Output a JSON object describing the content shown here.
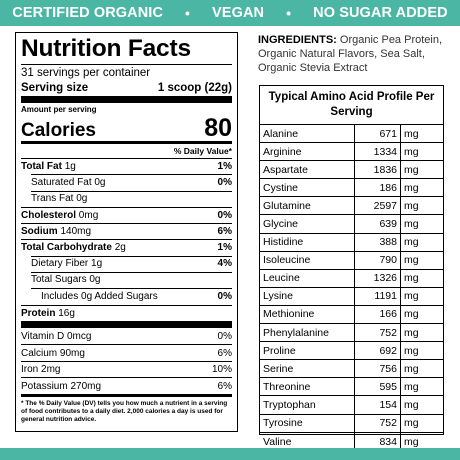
{
  "banner": {
    "items": [
      "CERTIFIED ORGANIC",
      "VEGAN",
      "NO SUGAR ADDED"
    ],
    "separator": "•"
  },
  "nutrition": {
    "title": "Nutrition Facts",
    "servings": "31 servings per container",
    "serving_size_label": "Serving size",
    "serving_size_value": "1 scoop (22g)",
    "amount_per_serving": "Amount per serving",
    "calories_label": "Calories",
    "calories_value": "80",
    "dv_header": "% Daily Value*",
    "rows": [
      {
        "label": "Total Fat",
        "amount": "1g",
        "pct": "1%"
      },
      {
        "label": "Saturated Fat",
        "amount": "0g",
        "pct": "0%"
      },
      {
        "label": "Trans Fat",
        "amount": "0g",
        "pct": ""
      },
      {
        "label": "Cholesterol",
        "amount": "0mg",
        "pct": "0%"
      },
      {
        "label": "Sodium",
        "amount": "140mg",
        "pct": "6%"
      },
      {
        "label": "Total Carbohydrate",
        "amount": "2g",
        "pct": "1%"
      },
      {
        "label": "Dietary Fiber",
        "amount": "1g",
        "pct": "4%"
      },
      {
        "label": "Total Sugars",
        "amount": "0g",
        "pct": ""
      },
      {
        "label": "Includes 0g Added Sugars",
        "amount": "",
        "pct": "0%"
      },
      {
        "label": "Protein",
        "amount": "16g",
        "pct": ""
      }
    ],
    "vitamins": [
      {
        "label": "Vitamin D 0mcg",
        "pct": "0%"
      },
      {
        "label": "Calcium 90mg",
        "pct": "6%"
      },
      {
        "label": "Iron 2mg",
        "pct": "10%"
      },
      {
        "label": "Potassium 270mg",
        "pct": "6%"
      }
    ],
    "footnote": "* The % Daily Value (DV) tells you how much a nutrient in a serving of food contributes to a daily diet. 2,000 calories a day is used for general nutrition advice."
  },
  "ingredients": {
    "label": "INGREDIENTS:",
    "text": "Organic Pea Protein, Organic Natural Flavors, Sea Salt, Organic Stevia Extract"
  },
  "amino": {
    "title": "Typical Amino Acid Profile Per Serving",
    "unit": "mg",
    "rows": [
      {
        "name": "Alanine",
        "value": "671"
      },
      {
        "name": "Arginine",
        "value": "1334"
      },
      {
        "name": "Aspartate",
        "value": "1836"
      },
      {
        "name": "Cystine",
        "value": "186"
      },
      {
        "name": "Glutamine",
        "value": "2597"
      },
      {
        "name": "Glycine",
        "value": "639"
      },
      {
        "name": "Histidine",
        "value": "388"
      },
      {
        "name": "Isoleucine",
        "value": "790"
      },
      {
        "name": "Leucine",
        "value": "1326"
      },
      {
        "name": "Lysine",
        "value": "1191"
      },
      {
        "name": "Methionine",
        "value": "166"
      },
      {
        "name": "Phenylalanine",
        "value": "752"
      },
      {
        "name": "Proline",
        "value": "692"
      },
      {
        "name": "Serine",
        "value": "756"
      },
      {
        "name": "Threonine",
        "value": "595"
      },
      {
        "name": "Tryptophan",
        "value": "154"
      },
      {
        "name": "Tyrosine",
        "value": "752"
      },
      {
        "name": "Valine",
        "value": "834"
      }
    ]
  },
  "colors": {
    "accent": "#4cb6a4"
  }
}
